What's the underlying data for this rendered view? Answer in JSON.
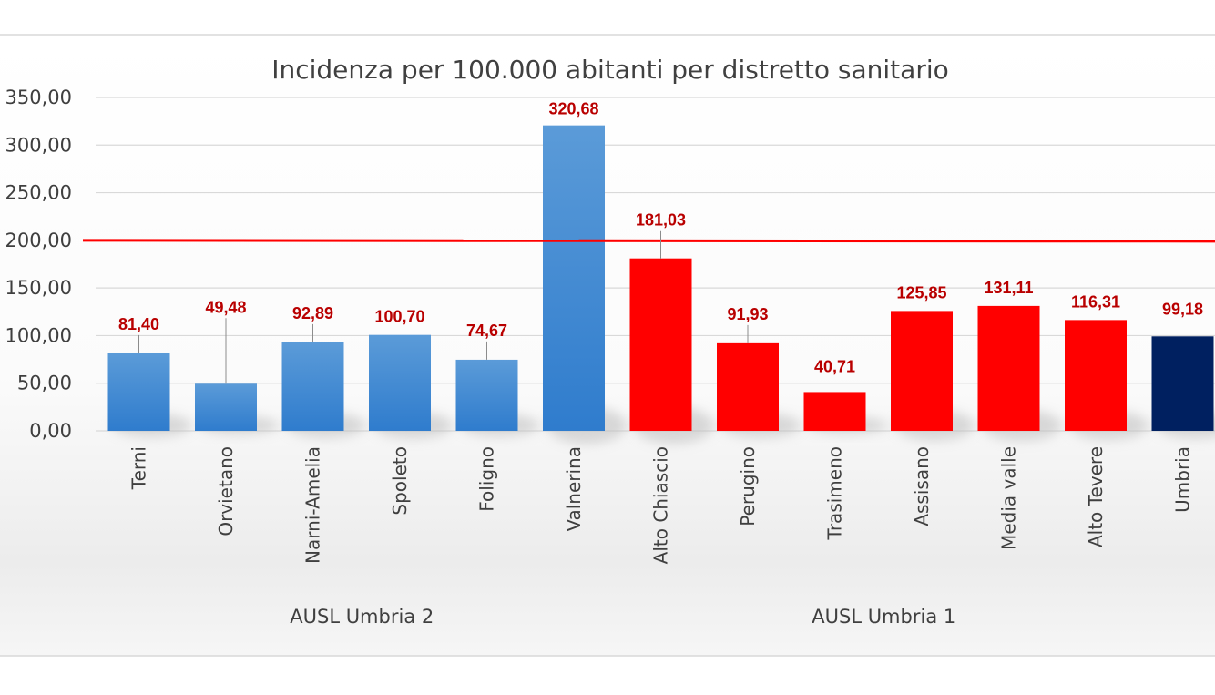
{
  "chart_data": {
    "type": "bar",
    "title": "Incidenza per 100.000 abitanti per distretto sanitario",
    "xlabel": "",
    "ylabel": "",
    "ylim": [
      0,
      350
    ],
    "y_ticks": [
      "0,00",
      "50,00",
      "100,00",
      "150,00",
      "200,00",
      "250,00",
      "300,00",
      "350,00"
    ],
    "y_tick_values": [
      0,
      50,
      100,
      150,
      200,
      250,
      300,
      350
    ],
    "categories": [
      "Terni",
      "Orvietano",
      "Narni-Amelia",
      "Spoleto",
      "Foligno",
      "Valnerina",
      "Alto Chiascio",
      "Perugino",
      "Trasimeno",
      "Assisano",
      "Media valle",
      "Alto Tevere",
      "Umbria"
    ],
    "values": [
      81.4,
      49.48,
      92.89,
      100.7,
      74.67,
      320.68,
      181.03,
      91.93,
      40.71,
      125.85,
      131.11,
      116.31,
      99.18
    ],
    "value_labels": [
      "81,40",
      "49,48",
      "92,89",
      "100,70",
      "74,67",
      "320,68",
      "181,03",
      "91,93",
      "40,71",
      "125,85",
      "131,11",
      "116,31",
      "99,18"
    ],
    "groups": [
      {
        "name": "AUSL Umbria 2",
        "categories": [
          "Terni",
          "Orvietano",
          "Narni-Amelia",
          "Spoleto",
          "Foligno",
          "Valnerina"
        ],
        "color": "#4a8fd6"
      },
      {
        "name": "AUSL Umbria 1",
        "categories": [
          "Alto Chiascio",
          "Perugino",
          "Trasimeno",
          "Assisano",
          "Media valle",
          "Alto Tevere"
        ],
        "color": "#ff0000"
      }
    ],
    "total_color": "#002060",
    "reference_line": {
      "value": 200,
      "color": "#ff0000"
    },
    "grid": true,
    "legend": "none"
  }
}
